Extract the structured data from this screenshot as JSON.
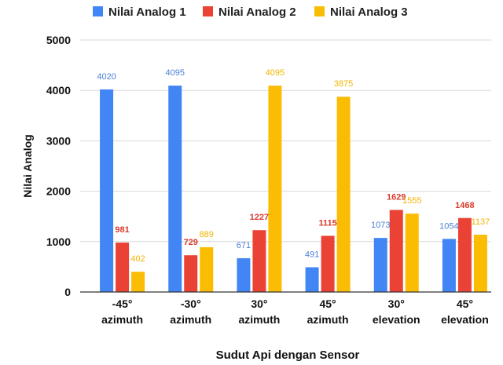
{
  "chart_data": {
    "type": "bar",
    "categories": [
      [
        "-45°",
        "azimuth"
      ],
      [
        "-30°",
        "azimuth"
      ],
      [
        "30°",
        "azimuth"
      ],
      [
        "45°",
        "azimuth"
      ],
      [
        "30°",
        "elevation"
      ],
      [
        "45°",
        "elevation"
      ]
    ],
    "series": [
      {
        "name": "Nilai Analog 1",
        "color": "#4285f4",
        "label_color": "#4a7fd4",
        "label_bold": false,
        "values": [
          4020,
          4095,
          671,
          491,
          1073,
          1054
        ]
      },
      {
        "name": "Nilai Analog 2",
        "color": "#ea4335",
        "label_color": "#d93a2c",
        "label_bold": true,
        "values": [
          981,
          729,
          1227,
          1115,
          1629,
          1468
        ]
      },
      {
        "name": "Nilai Analog 3",
        "color": "#fbbc04",
        "label_color": "#f2b400",
        "label_bold": false,
        "values": [
          402,
          889,
          4095,
          3875,
          1555,
          1137
        ]
      }
    ],
    "xlabel": "Sudut Api dengan Sensor",
    "ylabel": "Nilai Analog",
    "ylim": [
      0,
      5000
    ],
    "yticks": [
      0,
      1000,
      2000,
      3000,
      4000,
      5000
    ],
    "grid": true,
    "legend_position": "top"
  }
}
